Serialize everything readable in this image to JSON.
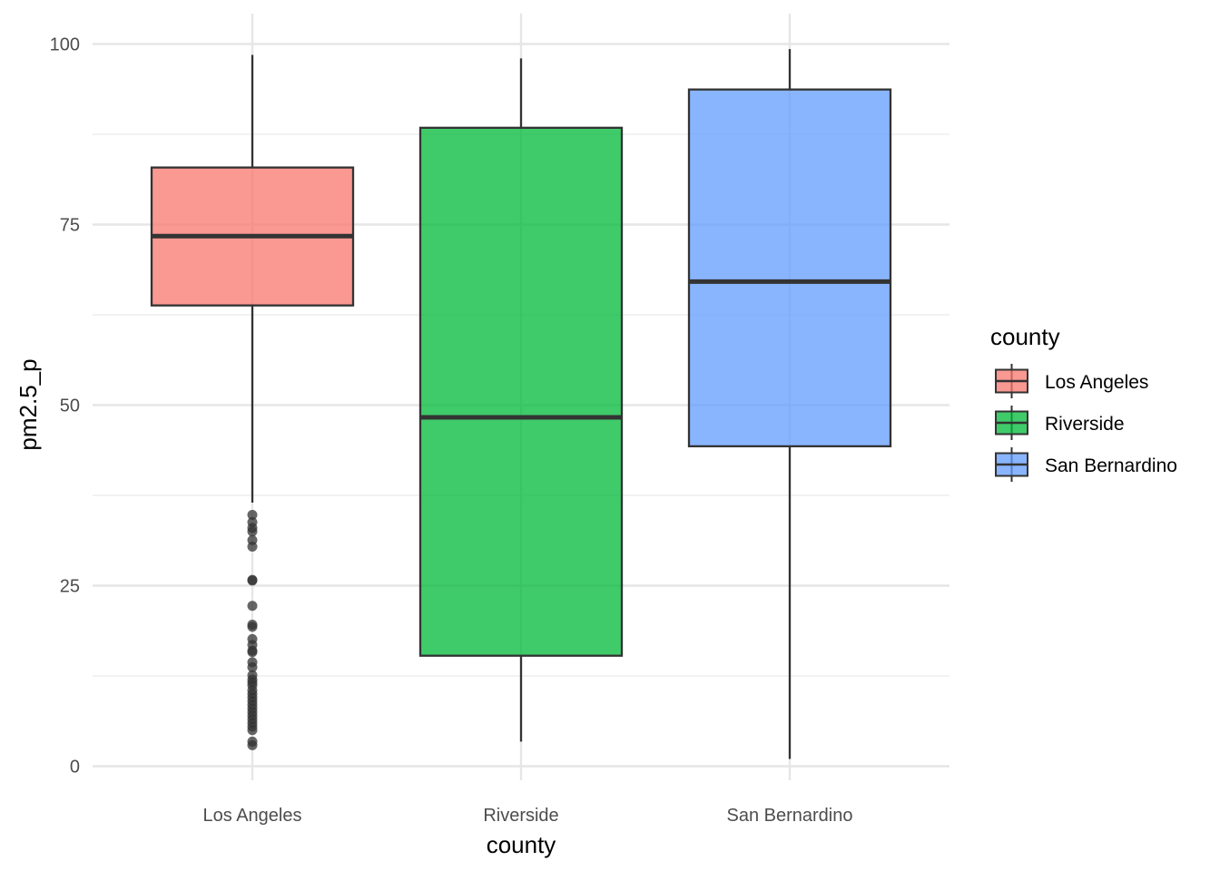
{
  "chart_data": {
    "type": "boxplot",
    "xlabel": "county",
    "ylabel": "pm2.5_p",
    "ylim": [
      -3,
      104
    ],
    "y_ticks": [
      0,
      25,
      50,
      75,
      100
    ],
    "y_minor_ticks": [
      12.5,
      37.5,
      62.5,
      87.5
    ],
    "grid": true,
    "categories": [
      "Los Angeles",
      "Riverside",
      "San Bernardino"
    ],
    "series": [
      {
        "name": "Los Angeles",
        "color": "#F8766D",
        "whisker_low": 36.5,
        "q1": 63.8,
        "median": 73.4,
        "q3": 82.9,
        "whisker_high": 98.5,
        "outliers": [
          34.8,
          33.8,
          33.0,
          32.5,
          31.3,
          30.4,
          25.8,
          25.7,
          22.2,
          19.6,
          19.3,
          17.6,
          16.8,
          16.0,
          15.8,
          14.4,
          13.7,
          12.6,
          12.0,
          11.6,
          11.2,
          10.5,
          10.0,
          9.5,
          9.0,
          8.5,
          8.0,
          7.5,
          7.0,
          6.5,
          6.0,
          5.5,
          5.0,
          3.4,
          2.9
        ]
      },
      {
        "name": "Riverside",
        "color": "#00BA38",
        "whisker_low": 3.4,
        "q1": 15.3,
        "median": 48.3,
        "q3": 88.4,
        "whisker_high": 98.0,
        "outliers": []
      },
      {
        "name": "San Bernardino",
        "color": "#619CFF",
        "whisker_low": 1.0,
        "q1": 44.3,
        "median": 67.1,
        "q3": 93.7,
        "whisker_high": 99.3,
        "outliers": []
      }
    ],
    "legend": {
      "title": "county",
      "position": "right",
      "items": [
        "Los Angeles",
        "Riverside",
        "San Bernardino"
      ]
    }
  }
}
